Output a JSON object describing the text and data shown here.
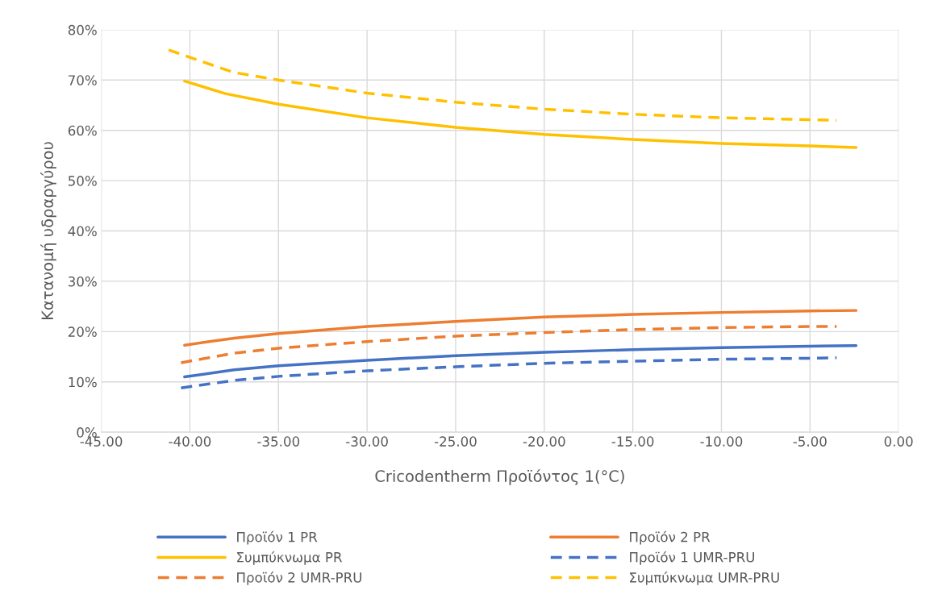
{
  "chart_data": {
    "type": "line",
    "xlabel": "Cricodentherm Προϊόντος 1(°C)",
    "ylabel": "Κατανομή υδραργύρου",
    "xlim": [
      -45,
      0
    ],
    "xticks": [
      {
        "value": -45,
        "label": "-45.00"
      },
      {
        "value": -40,
        "label": "-40.00"
      },
      {
        "value": -35,
        "label": "-35.00"
      },
      {
        "value": -30,
        "label": "-30.00"
      },
      {
        "value": -25,
        "label": "-25.00"
      },
      {
        "value": -20,
        "label": "-20.00"
      },
      {
        "value": -15,
        "label": "-15.00"
      },
      {
        "value": -10,
        "label": "-10.00"
      },
      {
        "value": -5,
        "label": "-5.00"
      },
      {
        "value": 0,
        "label": "0.00"
      }
    ],
    "ylim": [
      0,
      80
    ],
    "yticks": [
      {
        "value": 0,
        "label": "0%"
      },
      {
        "value": 10,
        "label": "10%"
      },
      {
        "value": 20,
        "label": "20%"
      },
      {
        "value": 30,
        "label": "30%"
      },
      {
        "value": 40,
        "label": "40%"
      },
      {
        "value": 50,
        "label": "50%"
      },
      {
        "value": 60,
        "label": "60%"
      },
      {
        "value": 70,
        "label": "70%"
      },
      {
        "value": 80,
        "label": "80%"
      }
    ],
    "grid": true,
    "legend": "bottom",
    "marker": "none",
    "series": [
      {
        "name": "Προϊόν 1 PR",
        "color": "#4472c4",
        "line_style": "solid",
        "x": [
          -40.3,
          -37.5,
          -35,
          -30,
          -25,
          -20,
          -15,
          -10,
          -5,
          -2.4
        ],
        "values": [
          11.0,
          12.4,
          13.2,
          14.3,
          15.2,
          15.9,
          16.4,
          16.8,
          17.1,
          17.2
        ]
      },
      {
        "name": "Προϊόν 2 PR",
        "color": "#ed7d31",
        "line_style": "solid",
        "x": [
          -40.3,
          -37.5,
          -35,
          -30,
          -25,
          -20,
          -15,
          -10,
          -5,
          -2.4
        ],
        "values": [
          17.3,
          18.7,
          19.6,
          21.0,
          22.0,
          22.9,
          23.4,
          23.8,
          24.1,
          24.2
        ]
      },
      {
        "name": "Συμπύκνωμα PR",
        "color": "#ffc000",
        "line_style": "solid",
        "x": [
          -40.3,
          -38,
          -35,
          -30,
          -25,
          -20,
          -15,
          -10,
          -5,
          -2.4
        ],
        "values": [
          69.8,
          67.3,
          65.2,
          62.5,
          60.6,
          59.2,
          58.2,
          57.4,
          56.9,
          56.6
        ]
      },
      {
        "name": "Προϊόν 1 UMR-PRU",
        "color": "#4472c4",
        "line_style": "dashed",
        "x": [
          -40.5,
          -37.5,
          -35,
          -30,
          -25,
          -20,
          -15,
          -10,
          -5,
          -3.5
        ],
        "values": [
          8.8,
          10.3,
          11.1,
          12.2,
          13.0,
          13.7,
          14.1,
          14.5,
          14.7,
          14.8
        ]
      },
      {
        "name": "Προϊόν 2 UMR-PRU",
        "color": "#ed7d31",
        "line_style": "dashed",
        "x": [
          -40.5,
          -37.5,
          -35,
          -30,
          -25,
          -20,
          -15,
          -10,
          -5,
          -3.5
        ],
        "values": [
          13.8,
          15.7,
          16.7,
          18.0,
          19.1,
          19.8,
          20.4,
          20.8,
          21.0,
          21.0
        ]
      },
      {
        "name": "Συμπύκνωμα UMR-PRU",
        "color": "#ffc000",
        "line_style": "dashed",
        "x": [
          -41.2,
          -40,
          -37.5,
          -35,
          -30,
          -25,
          -20,
          -15,
          -10,
          -5,
          -3.5
        ],
        "values": [
          76.0,
          74.5,
          71.5,
          70.0,
          67.4,
          65.6,
          64.2,
          63.2,
          62.5,
          62.1,
          62.0
        ]
      }
    ]
  }
}
